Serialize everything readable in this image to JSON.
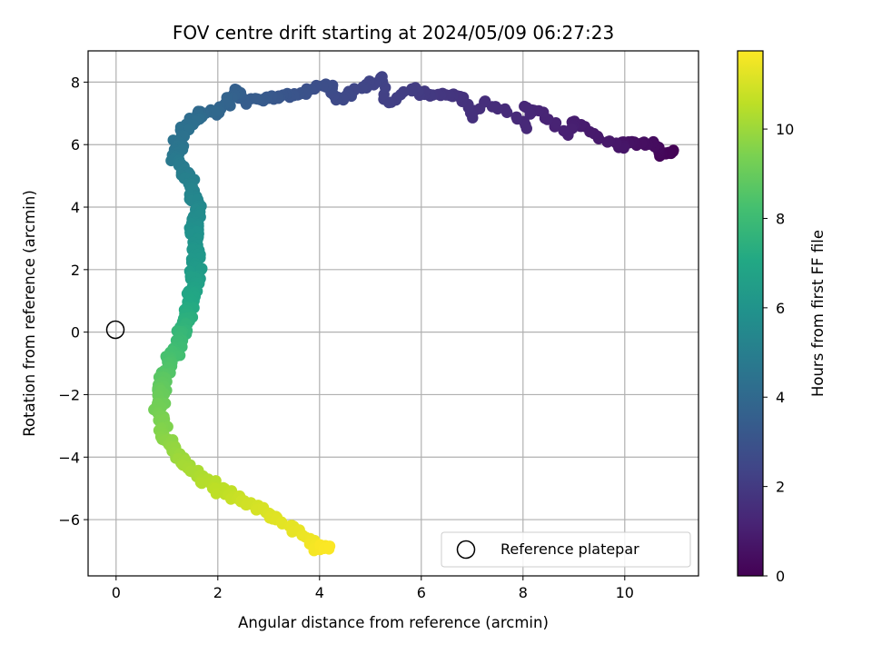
{
  "chart_data": {
    "type": "scatter",
    "title": "FOV centre drift starting at 2024/05/09 06:27:23",
    "xlabel": "Angular distance from reference (arcmin)",
    "ylabel": "Rotation from reference (arcmin)",
    "xlim": [
      -0.55,
      11.45
    ],
    "ylim": [
      -7.8,
      9.0
    ],
    "xticks": [
      0,
      2,
      4,
      6,
      8,
      10
    ],
    "yticks": [
      -6,
      -4,
      -2,
      0,
      2,
      4,
      6,
      8
    ],
    "xtick_labels": [
      "0",
      "2",
      "4",
      "6",
      "8",
      "10"
    ],
    "ytick_labels": [
      "−6",
      "−4",
      "−2",
      "0",
      "2",
      "4",
      "6",
      "8"
    ],
    "grid": true,
    "colormap": "viridis",
    "colorbar": {
      "label": "Hours from first FF file",
      "range": [
        0,
        11.75
      ],
      "ticks": [
        0,
        2,
        4,
        6,
        8,
        10
      ],
      "tick_labels": [
        "0",
        "2",
        "4",
        "6",
        "8",
        "10"
      ]
    },
    "legend": {
      "entry": "Reference platepar",
      "placement": "lower-right"
    },
    "reference_point": {
      "x": 0,
      "y": 0
    },
    "trajectory": [
      {
        "x": 10.95,
        "y": 5.75,
        "hours": 0.0
      },
      {
        "x": 10.7,
        "y": 5.7,
        "hours": 0.2
      },
      {
        "x": 10.6,
        "y": 6.0,
        "hours": 0.35
      },
      {
        "x": 9.95,
        "y": 6.1,
        "hours": 0.6
      },
      {
        "x": 9.95,
        "y": 5.85,
        "hours": 0.7
      },
      {
        "x": 8.95,
        "y": 6.75,
        "hours": 0.95
      },
      {
        "x": 8.9,
        "y": 6.35,
        "hours": 1.05
      },
      {
        "x": 8.4,
        "y": 7.0,
        "hours": 1.2
      },
      {
        "x": 8.0,
        "y": 7.2,
        "hours": 1.3
      },
      {
        "x": 8.1,
        "y": 6.55,
        "hours": 1.35
      },
      {
        "x": 7.6,
        "y": 7.15,
        "hours": 1.45
      },
      {
        "x": 7.2,
        "y": 7.4,
        "hours": 1.55
      },
      {
        "x": 7.0,
        "y": 6.85,
        "hours": 1.6
      },
      {
        "x": 6.85,
        "y": 7.5,
        "hours": 1.7
      },
      {
        "x": 6.1,
        "y": 7.6,
        "hours": 1.95
      },
      {
        "x": 5.75,
        "y": 7.8,
        "hours": 2.1
      },
      {
        "x": 5.35,
        "y": 7.3,
        "hours": 2.2
      },
      {
        "x": 5.25,
        "y": 8.15,
        "hours": 2.3
      },
      {
        "x": 4.6,
        "y": 7.7,
        "hours": 2.5
      },
      {
        "x": 4.4,
        "y": 7.45,
        "hours": 2.6
      },
      {
        "x": 4.1,
        "y": 7.95,
        "hours": 2.75
      },
      {
        "x": 3.75,
        "y": 7.7,
        "hours": 2.9
      },
      {
        "x": 3.55,
        "y": 7.6,
        "hours": 3.0
      },
      {
        "x": 2.5,
        "y": 7.4,
        "hours": 3.45
      },
      {
        "x": 2.4,
        "y": 7.8,
        "hours": 3.55
      },
      {
        "x": 2.0,
        "y": 7.0,
        "hours": 3.85
      },
      {
        "x": 1.7,
        "y": 7.05,
        "hours": 4.0
      },
      {
        "x": 1.5,
        "y": 6.75,
        "hours": 4.2
      },
      {
        "x": 1.3,
        "y": 6.45,
        "hours": 4.35
      },
      {
        "x": 1.25,
        "y": 6.0,
        "hours": 4.5
      },
      {
        "x": 1.2,
        "y": 5.5,
        "hours": 4.75
      },
      {
        "x": 1.4,
        "y": 5.0,
        "hours": 5.0
      },
      {
        "x": 1.55,
        "y": 4.3,
        "hours": 5.35
      },
      {
        "x": 1.6,
        "y": 3.6,
        "hours": 5.65
      },
      {
        "x": 1.55,
        "y": 2.8,
        "hours": 6.05
      },
      {
        "x": 1.6,
        "y": 2.0,
        "hours": 6.35
      },
      {
        "x": 1.5,
        "y": 1.3,
        "hours": 6.8
      },
      {
        "x": 1.4,
        "y": 0.5,
        "hours": 7.3
      },
      {
        "x": 1.25,
        "y": -0.2,
        "hours": 7.85
      },
      {
        "x": 1.05,
        "y": -0.9,
        "hours": 8.3
      },
      {
        "x": 0.9,
        "y": -1.7,
        "hours": 8.85
      },
      {
        "x": 0.85,
        "y": -2.5,
        "hours": 9.25
      },
      {
        "x": 0.95,
        "y": -3.3,
        "hours": 9.6
      },
      {
        "x": 1.25,
        "y": -4.0,
        "hours": 9.95
      },
      {
        "x": 1.6,
        "y": -4.6,
        "hours": 10.3
      },
      {
        "x": 2.1,
        "y": -5.1,
        "hours": 10.6
      },
      {
        "x": 2.6,
        "y": -5.5,
        "hours": 10.9
      },
      {
        "x": 3.1,
        "y": -5.9,
        "hours": 11.15
      },
      {
        "x": 3.5,
        "y": -6.3,
        "hours": 11.35
      },
      {
        "x": 3.8,
        "y": -6.6,
        "hours": 11.45
      },
      {
        "x": 4.0,
        "y": -6.95,
        "hours": 11.6
      },
      {
        "x": 4.2,
        "y": -6.85,
        "hours": 11.72
      }
    ]
  }
}
